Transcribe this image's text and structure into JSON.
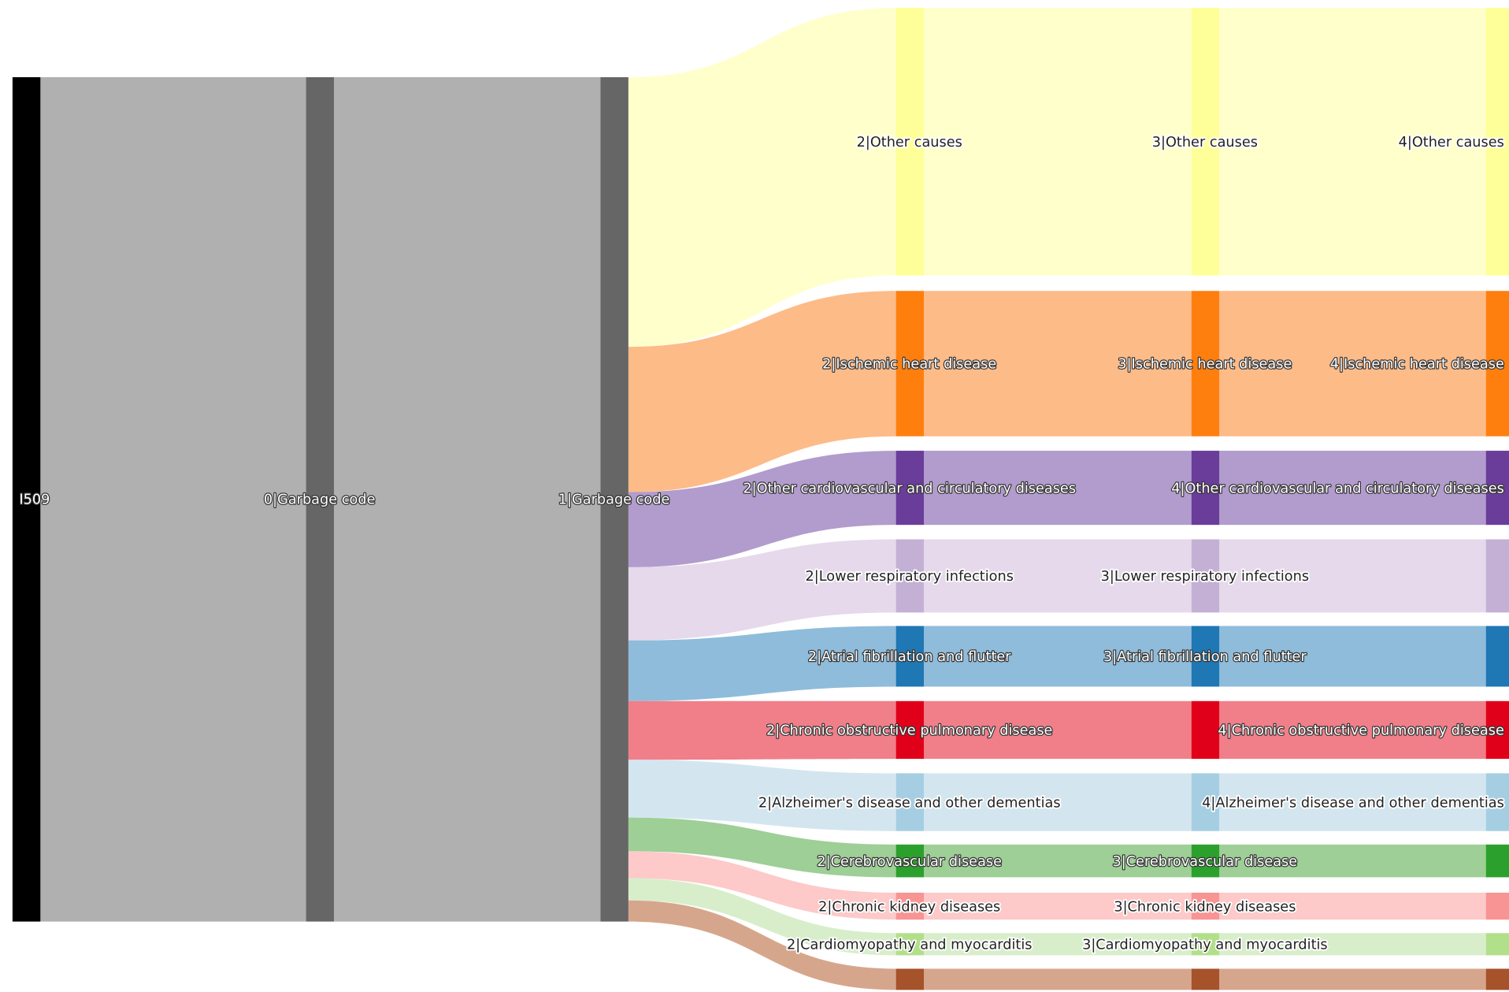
{
  "nodes": {
    "level0": [
      "I509"
    ],
    "level1": [
      "0|Garbage code"
    ],
    "level2": [
      "1|Garbage code"
    ],
    "level3": [
      "2|Other causes",
      "2|Ischemic heart disease",
      "2|Other cardiovascular and circulatory diseases",
      "2|Lower respiratory infections",
      "2|Atrial fibrillation and flutter",
      "2|Chronic obstructive pulmonary disease",
      "2|Alzheimer's disease and other dementias",
      "2|Cerebrovascular disease",
      "2|Chronic kidney diseases",
      "2|Cardiomyopathy and myocarditis"
    ],
    "level4": [
      "3|Other causes",
      "3|Ischemic heart disease",
      "3|Lower respiratory infections",
      "3|Atrial fibrillation and flutter",
      "3|Cerebrovascular disease",
      "3|Chronic kidney diseases",
      "3|Cardiomyopathy and myocarditis"
    ],
    "level5": [
      "4|Other causes",
      "4|Ischemic heart disease",
      "4|Other cardiovascular and circulatory diseases",
      "4|Chronic obstructive pulmonary disease",
      "4|Alzheimer's disease and other dementias"
    ]
  }
}
